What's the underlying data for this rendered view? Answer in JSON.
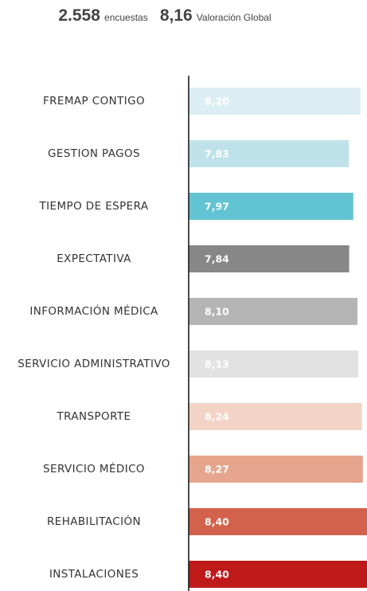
{
  "chart_data": {
    "type": "bar",
    "orientation": "horizontal",
    "summary": [
      {
        "value": "2.558",
        "label": "encuestas"
      },
      {
        "value": "8,16",
        "label": "Valoración Global"
      }
    ],
    "categories": [
      "FREMAP CONTIGO",
      "GESTION PAGOS",
      "TIEMPO DE ESPERA",
      "EXPECTATIVA",
      "INFORMACIÓN MÉDICA",
      "SERVICIO ADMINISTRATIVO",
      "TRANSPORTE",
      "SERVICIO MÉDICO",
      "REHABILITACIÓN",
      "INSTALACIONES"
    ],
    "values": [
      8.2,
      7.83,
      7.97,
      7.84,
      8.1,
      8.13,
      8.24,
      8.27,
      8.4,
      8.4
    ],
    "value_labels": [
      "8,20",
      "7,83",
      "7,97",
      "7,84",
      "8,10",
      "8,13",
      "8,24",
      "8,27",
      "8,40",
      "8,40"
    ],
    "colors": [
      "#dceef4",
      "#bfe2ea",
      "#62c3d2",
      "#878787",
      "#b4b4b4",
      "#e2e2e2",
      "#f2d3c6",
      "#e6a58d",
      "#d2624b",
      "#be1a1a"
    ],
    "xlim": [
      2.8,
      8.4
    ]
  }
}
